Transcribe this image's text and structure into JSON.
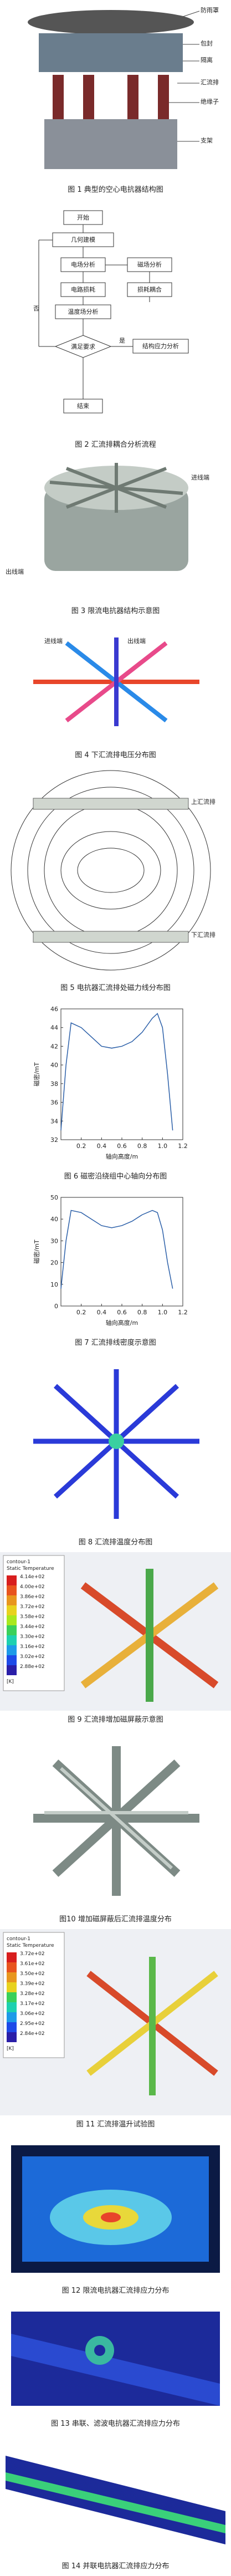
{
  "figures": [
    {
      "caption": "图 1  典型的空心电抗器结构图",
      "labels": [
        "防雨罩",
        "包封",
        "隔离",
        "汇流排",
        "绝缘子",
        "支架"
      ]
    },
    {
      "caption": "图 2  汇流排耦合分析流程",
      "nodes": [
        "开始",
        "几何建模",
        "电场分析",
        "磁场分析",
        "电路损耗",
        "损耗耦合",
        "温度场分析",
        "满足要求",
        "是",
        "否",
        "结构应力分析",
        "结束"
      ]
    },
    {
      "caption": "图 3  限流电抗器结构示意图",
      "labels": [
        "进线端",
        "出线端"
      ]
    },
    {
      "caption": "图 4  下汇流排电压分布图",
      "labels": [
        "进线端",
        "出线端"
      ]
    },
    {
      "caption": "图 5  电抗器汇流排处磁力线分布图",
      "labels": [
        "上汇流排",
        "下汇流排"
      ]
    },
    {
      "caption": "图 6  磁密沿绕组中心轴向分布图",
      "chart": {
        "type": "line",
        "x_label": "轴向高度/m",
        "y_label": "磁密/mT",
        "x": [
          0,
          0.05,
          0.1,
          0.2,
          0.3,
          0.4,
          0.5,
          0.6,
          0.7,
          0.8,
          0.9,
          0.95,
          1.0,
          1.05,
          1.1
        ],
        "values": [
          33,
          40,
          44.5,
          44,
          43,
          42,
          41.8,
          42,
          42.5,
          43.5,
          45,
          45.5,
          44,
          39,
          33
        ],
        "color": "#2b5fa8",
        "xlim": [
          0,
          1.2
        ],
        "xticks": [
          {
            "value": 0.2,
            "label": "0.2"
          },
          {
            "value": 0.4,
            "label": "0.4"
          },
          {
            "value": 0.6,
            "label": "0.6"
          },
          {
            "value": 0.8,
            "label": "0.8"
          },
          {
            "value": 1.0,
            "label": "1.0"
          },
          {
            "value": 1.2,
            "label": "1.2"
          }
        ],
        "ylim": [
          32,
          46
        ],
        "yticks": [
          32,
          34,
          36,
          38,
          40,
          42,
          44,
          46
        ]
      }
    },
    {
      "caption": "图 7  汇流排线密度示意图",
      "chart": {
        "type": "line",
        "x_label": "轴向高度/m",
        "y_label": "磁密/mT",
        "x": [
          0,
          0.05,
          0.1,
          0.2,
          0.3,
          0.4,
          0.5,
          0.6,
          0.7,
          0.8,
          0.9,
          0.95,
          1.0,
          1.05,
          1.1
        ],
        "values": [
          8,
          30,
          44,
          43,
          40,
          37,
          36,
          37,
          39,
          42,
          44,
          43,
          35,
          20,
          8
        ],
        "color": "#2b5fa8",
        "xlim": [
          0,
          1.2
        ],
        "xticks": [
          {
            "value": 0.2,
            "label": "0.2"
          },
          {
            "value": 0.4,
            "label": "0.4"
          },
          {
            "value": 0.6,
            "label": "0.6"
          },
          {
            "value": 0.8,
            "label": "0.8"
          },
          {
            "value": 1.0,
            "label": "1.0"
          },
          {
            "value": 1.2,
            "label": "1.2"
          }
        ],
        "ylim": [
          0,
          50
        ],
        "yticks": [
          0,
          10,
          20,
          30,
          40,
          50
        ]
      }
    },
    {
      "caption": "图 8  汇流排温度分布图"
    },
    {
      "caption": "图 9  汇流排增加磁屏蔽示意图",
      "legend": {
        "title": "contour-1",
        "subtitle": "Static Temperature",
        "unit": "[K]",
        "labels": [
          "4.14e+02",
          "4.00e+02",
          "3.86e+02",
          "3.72e+02",
          "3.58e+02",
          "3.44e+02",
          "3.30e+02",
          "3.16e+02",
          "3.02e+02",
          "2.88e+02"
        ]
      }
    },
    {
      "caption": "图10  增加磁屏蔽后汇流排温度分布"
    },
    {
      "caption": "图 11  汇流排温升试验图",
      "legend": {
        "title": "contour-1",
        "subtitle": "Static Temperature",
        "unit": "[K]",
        "labels": [
          "3.72e+02",
          "3.61e+02",
          "3.50e+02",
          "3.39e+02",
          "3.28e+02",
          "3.17e+02",
          "3.06e+02",
          "2.95e+02",
          "2.84e+02"
        ]
      }
    },
    {
      "caption": "图 12  限流电抗器汇流排应力分布"
    },
    {
      "caption": "图 13  串联、滤波电抗器汇流排应力分布"
    },
    {
      "caption": "图 14  并联电抗器汇流排应力分布"
    }
  ]
}
